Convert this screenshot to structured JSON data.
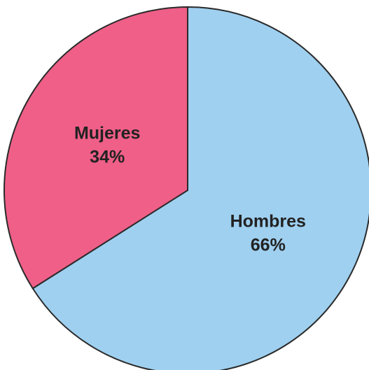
{
  "chart_data": {
    "type": "pie",
    "categories": [
      "Hombres",
      "Mujeres"
    ],
    "values": [
      66,
      34
    ],
    "value_labels": [
      "66%",
      "34%"
    ],
    "colors": [
      "#9fd0f0",
      "#ef5f88"
    ]
  }
}
